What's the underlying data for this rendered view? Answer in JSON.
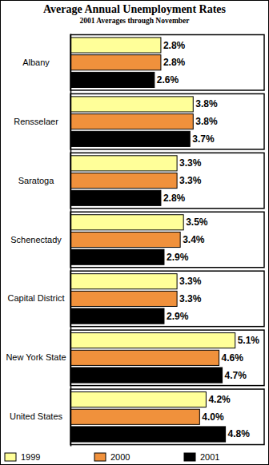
{
  "chart_data": {
    "type": "bar",
    "orientation": "horizontal",
    "title": "Average Annual Unemployment Rates",
    "subtitle": "2001 Averages through November",
    "categories": [
      "Albany",
      "Rensselaer",
      "Saratoga",
      "Schenectady",
      "Capital District",
      "New York State",
      "United States"
    ],
    "series": [
      {
        "name": "1999",
        "color": "#ffff99",
        "values": [
          2.8,
          3.8,
          3.3,
          3.5,
          3.3,
          5.1,
          4.2
        ],
        "value_labels": [
          "2.8%",
          "3.8%",
          "3.3%",
          "3.5%",
          "3.3%",
          "5.1%",
          "4.2%"
        ]
      },
      {
        "name": "2000",
        "color": "#f0913c",
        "values": [
          2.8,
          3.8,
          3.3,
          3.4,
          3.3,
          4.6,
          4.0
        ],
        "value_labels": [
          "2.8%",
          "3.8%",
          "3.3%",
          "3.4%",
          "3.3%",
          "4.6%",
          "4.0%"
        ]
      },
      {
        "name": "2001",
        "color": "#000000",
        "values": [
          2.6,
          3.7,
          2.8,
          2.9,
          2.9,
          4.7,
          4.8
        ],
        "value_labels": [
          "2.6%",
          "3.7%",
          "2.8%",
          "2.9%",
          "2.9%",
          "4.7%",
          "4.8%"
        ]
      }
    ],
    "xlim": [
      0,
      6
    ],
    "data_labels": true,
    "tick_labels": "y",
    "grid": false,
    "legend": "bottom"
  }
}
